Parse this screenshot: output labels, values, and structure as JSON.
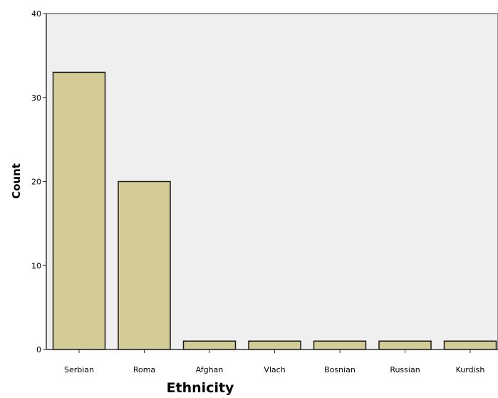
{
  "chart_data": {
    "type": "bar",
    "categories": [
      "Serbian",
      "Roma",
      "Afghan",
      "Vlach",
      "Bosnian",
      "Russian",
      "Kurdish"
    ],
    "values": [
      33,
      20,
      1,
      1,
      1,
      1,
      1
    ],
    "xlabel": "Ethnicity",
    "ylabel": "Count",
    "ylim": [
      0,
      40
    ],
    "yticks": [
      0,
      10,
      20,
      30,
      40
    ],
    "grid": false,
    "colors": {
      "bar_fill": "#d3cc96",
      "bar_stroke": "#1a1a1a",
      "plot_background": "#efefef",
      "axis": "#333333"
    }
  }
}
